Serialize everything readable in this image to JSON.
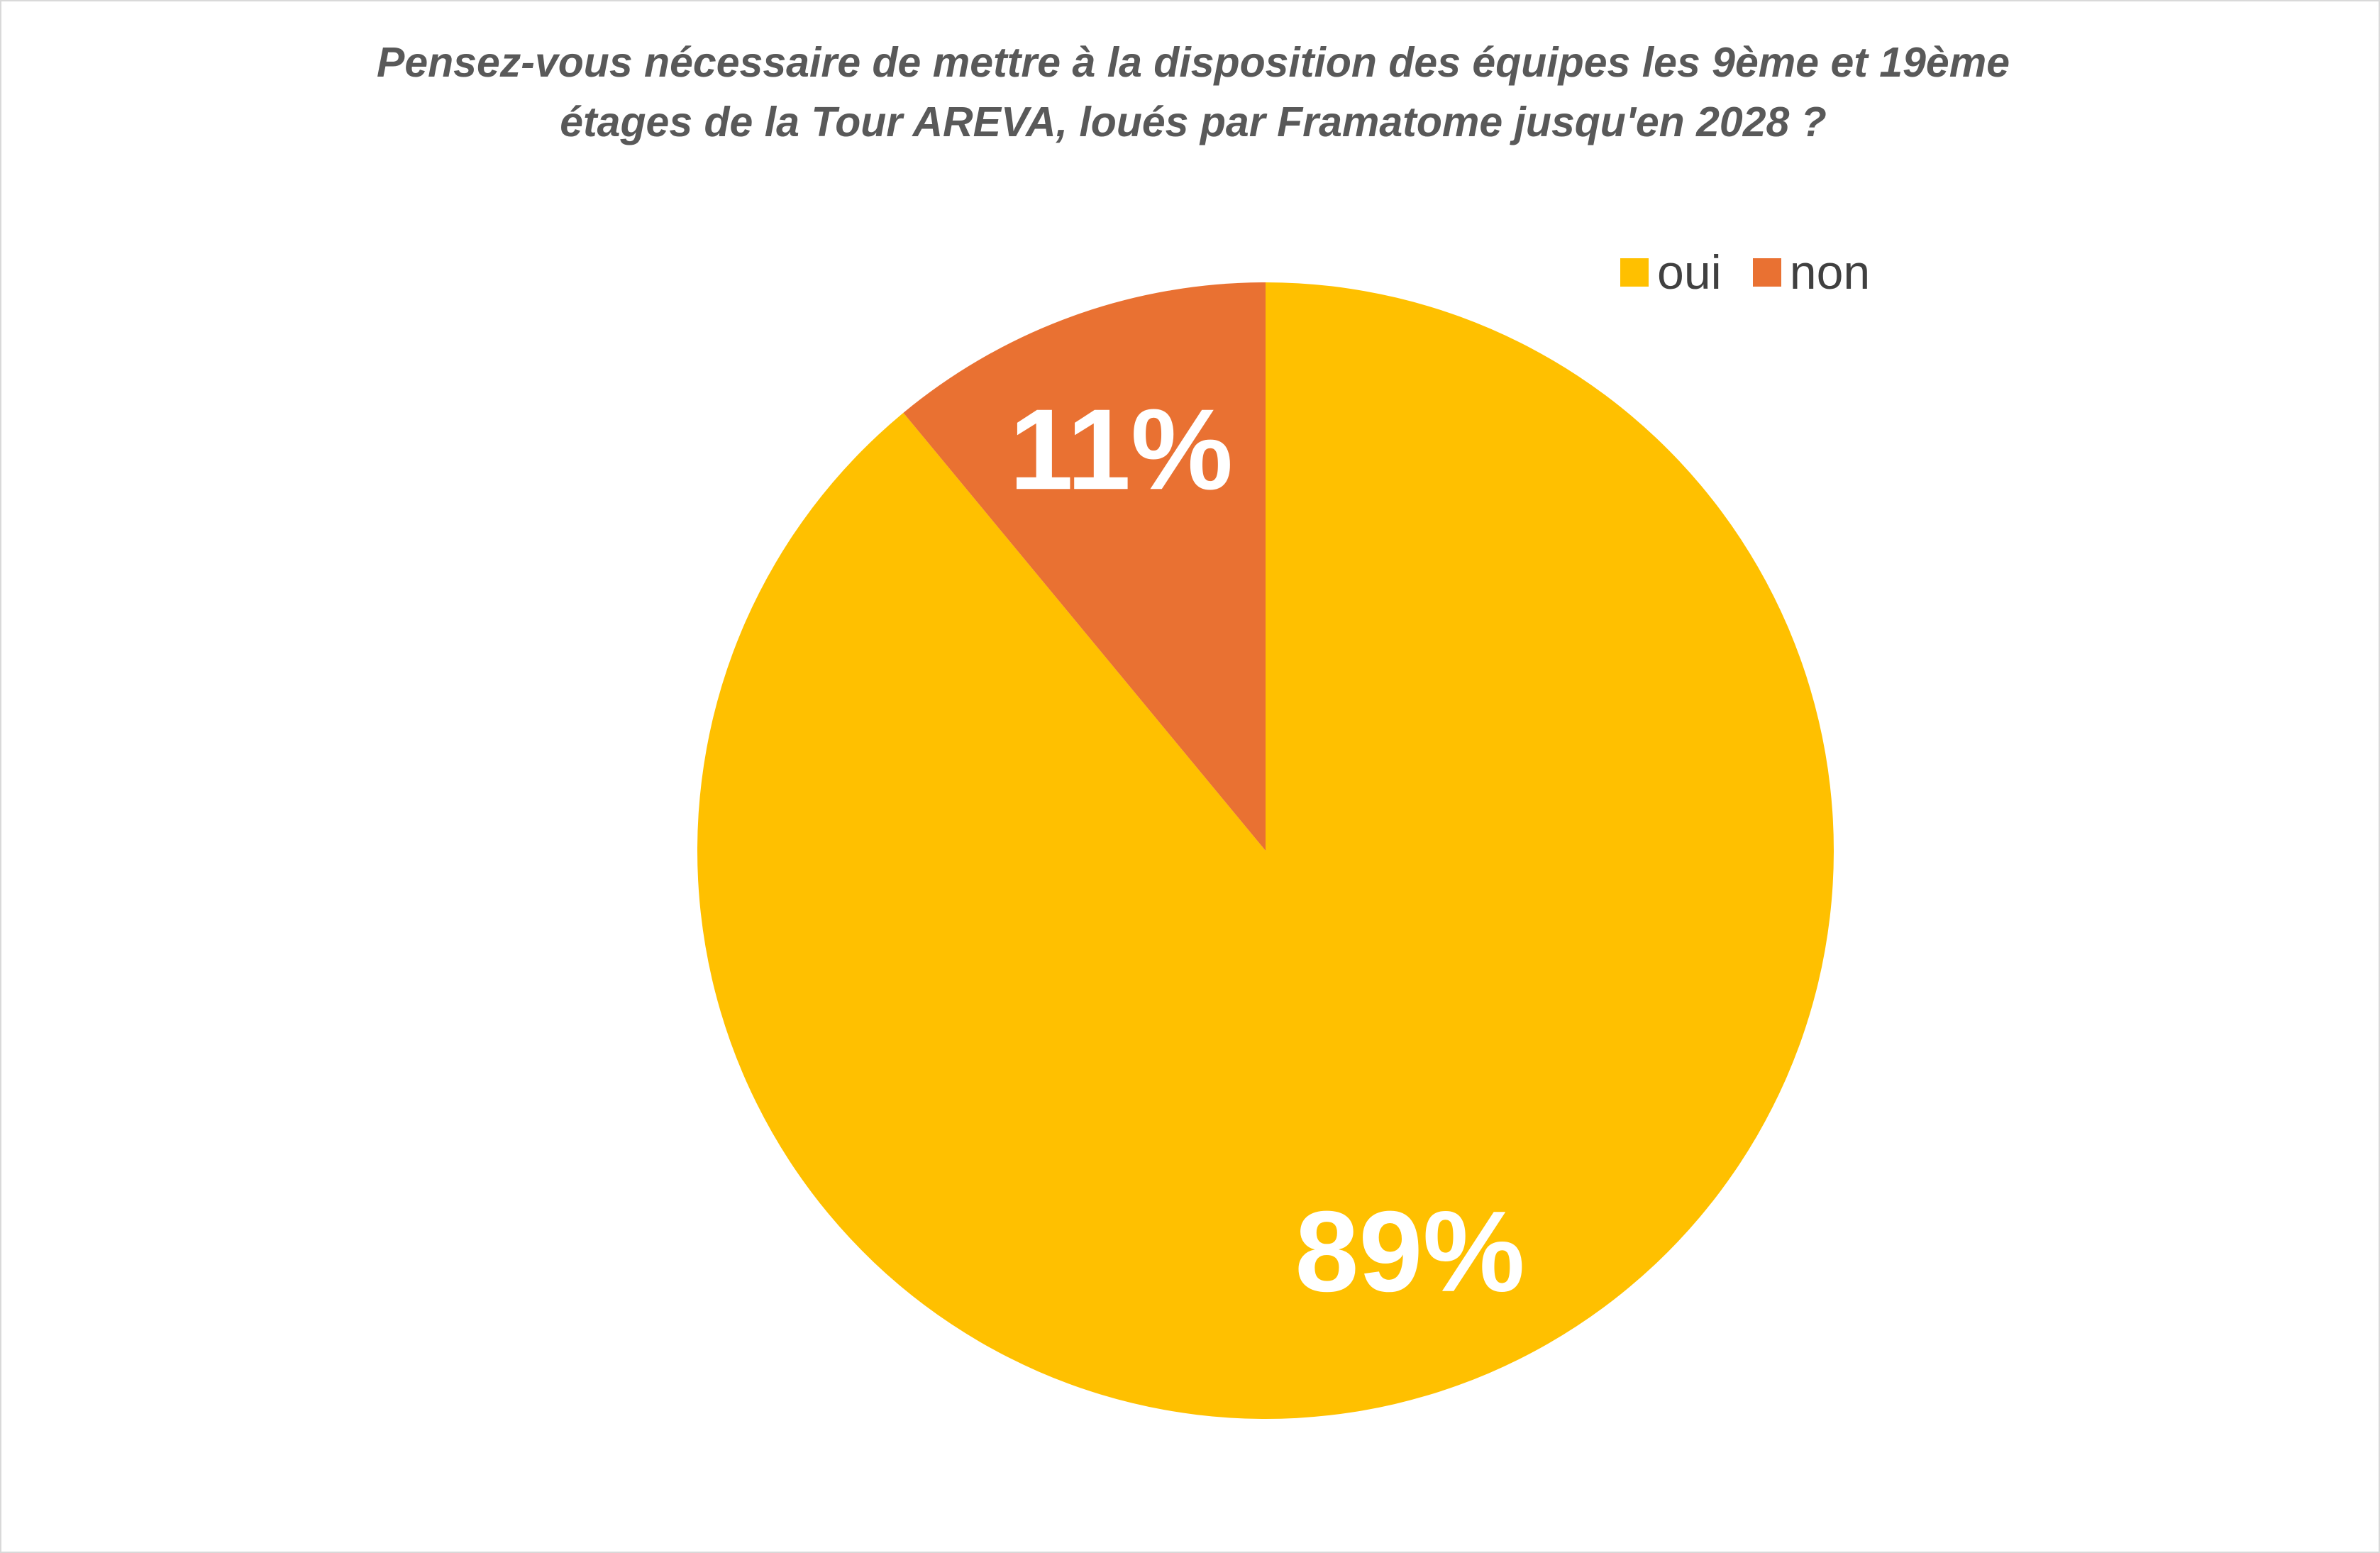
{
  "chart_data": {
    "type": "pie",
    "title_lines": [
      "Pensez-vous nécessaire de mettre à la disposition des équipes les 9ème et 19ème",
      "étages de la Tour AREVA, loués par Framatome jusqu'en 2028 ?"
    ],
    "categories": [
      "oui",
      "non"
    ],
    "values": [
      89,
      11
    ],
    "labels": [
      "89%",
      "11%"
    ],
    "colors": [
      "#FFC000",
      "#E97132"
    ],
    "legend_position": "top-right"
  }
}
